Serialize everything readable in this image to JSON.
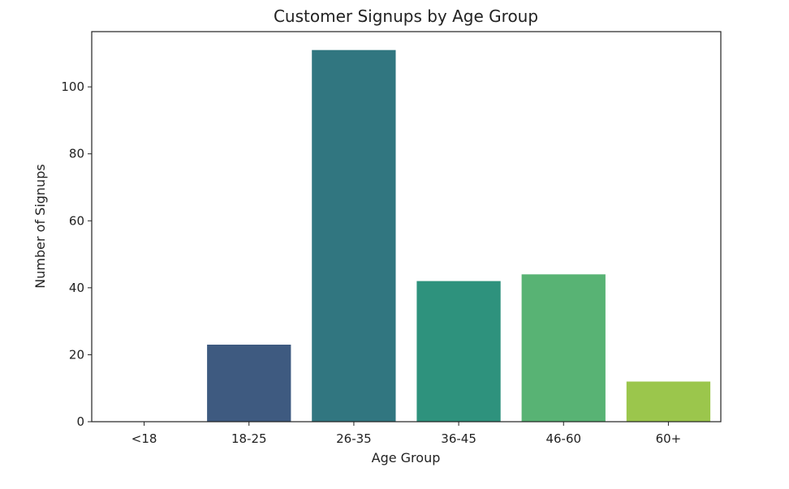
{
  "chart_data": {
    "type": "bar",
    "title": "Customer Signups by Age Group",
    "xlabel": "Age Group",
    "ylabel": "Number of Signups",
    "categories": [
      "<18",
      "18-25",
      "26-35",
      "36-45",
      "46-60",
      "60+"
    ],
    "values": [
      0,
      23,
      111,
      42,
      44,
      12
    ],
    "colors": [
      "#482374",
      "#3e5a80",
      "#317680",
      "#2e927d",
      "#58b374",
      "#9bc64c"
    ],
    "ylim": [
      0,
      116.5
    ],
    "yticks": [
      0,
      20,
      40,
      60,
      80,
      100
    ],
    "grid": false,
    "legend": "none"
  }
}
